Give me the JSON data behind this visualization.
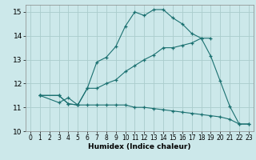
{
  "xlabel": "Humidex (Indice chaleur)",
  "background_color": "#cce8ea",
  "grid_color": "#aacccc",
  "line_color": "#1a7070",
  "xlim": [
    -0.5,
    23.5
  ],
  "ylim": [
    10,
    15.3
  ],
  "xticks": [
    0,
    1,
    2,
    3,
    4,
    5,
    6,
    7,
    8,
    9,
    10,
    11,
    12,
    13,
    14,
    15,
    16,
    17,
    18,
    19,
    20,
    21,
    22,
    23
  ],
  "yticks": [
    10,
    11,
    12,
    13,
    14,
    15
  ],
  "lines": [
    {
      "x": [
        1,
        3,
        4,
        5,
        6,
        7,
        8,
        9,
        10,
        11,
        12,
        13,
        14,
        15,
        16,
        17,
        18,
        19
      ],
      "y": [
        11.5,
        11.5,
        11.15,
        11.1,
        11.8,
        12.9,
        13.1,
        13.55,
        14.4,
        15.0,
        14.85,
        15.1,
        15.1,
        14.75,
        14.5,
        14.1,
        13.9,
        13.9
      ]
    },
    {
      "x": [
        1,
        3,
        4,
        5,
        6,
        7,
        8,
        9,
        10,
        11,
        12,
        13,
        14,
        15,
        16,
        17,
        18,
        19,
        20,
        21,
        22,
        23
      ],
      "y": [
        11.5,
        11.5,
        11.15,
        11.1,
        11.8,
        11.8,
        12.0,
        12.15,
        12.5,
        12.75,
        13.0,
        13.2,
        13.5,
        13.5,
        13.6,
        13.7,
        13.9,
        13.15,
        12.1,
        11.05,
        10.3,
        10.3
      ]
    },
    {
      "x": [
        1,
        3,
        4,
        5,
        6,
        7,
        8,
        9,
        10,
        11,
        12,
        13,
        14,
        15,
        16,
        17,
        18,
        19,
        20,
        21,
        22,
        23
      ],
      "y": [
        11.5,
        11.2,
        11.4,
        11.1,
        11.1,
        11.1,
        11.1,
        11.1,
        11.1,
        11.0,
        11.0,
        10.95,
        10.9,
        10.85,
        10.8,
        10.75,
        10.7,
        10.65,
        10.6,
        10.5,
        10.3,
        10.3
      ]
    }
  ]
}
